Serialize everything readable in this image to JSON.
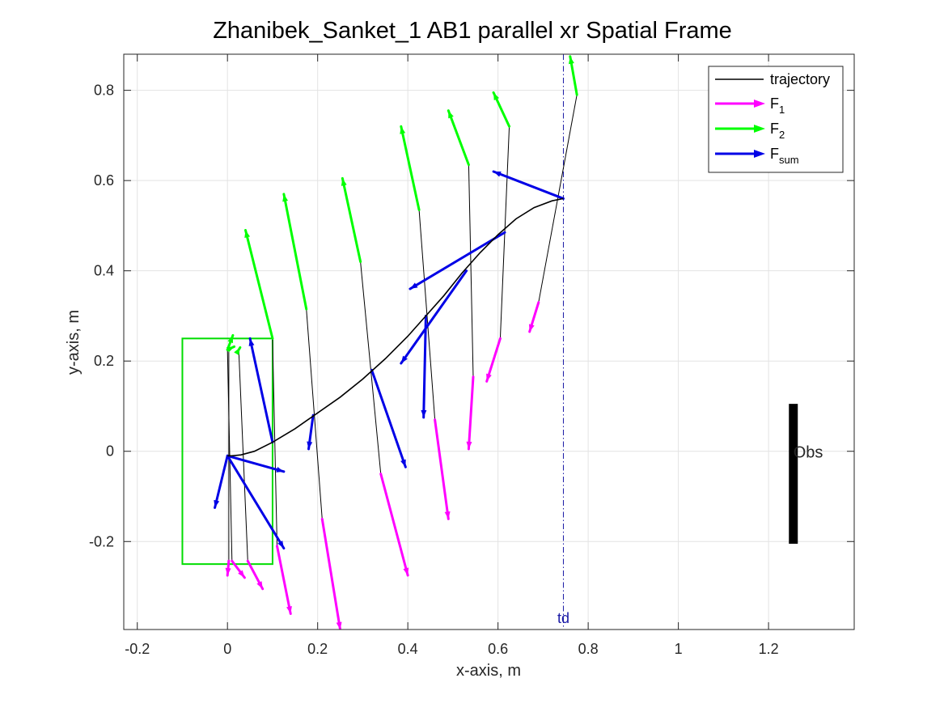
{
  "chart_data": {
    "type": "line",
    "title": "Zhanibek_Sanket_1    AB1    parallel    xr  Spatial Frame",
    "xlabel": "x-axis, m",
    "ylabel": "y-axis, m",
    "xlim": [
      -0.23,
      1.39
    ],
    "ylim": [
      -0.395,
      0.88
    ],
    "xticks": [
      -0.2,
      0,
      0.2,
      0.4,
      0.6,
      0.8,
      1,
      1.2
    ],
    "xtick_labels": [
      "-0.2",
      "0",
      "0.2",
      "0.4",
      "0.6",
      "0.8",
      "1",
      "1.2"
    ],
    "yticks": [
      -0.2,
      0,
      0.2,
      0.4,
      0.6,
      0.8
    ],
    "ytick_labels": [
      "-0.2",
      "0",
      "0.2",
      "0.4",
      "0.6",
      "0.8"
    ],
    "grid": true,
    "colors": {
      "trajectory": "#000000",
      "F1": "#ff00ff",
      "F2": "#00ff00",
      "Fsum": "#0000e6",
      "td": "#1a1aa6",
      "start_box": "#00dd00",
      "obstacle": "#000000"
    },
    "legend": {
      "position": "top-right",
      "entries": [
        {
          "label": "trajectory",
          "sub": ""
        },
        {
          "label": "F",
          "sub": "1"
        },
        {
          "label": "F",
          "sub": "2"
        },
        {
          "label": "F",
          "sub": "sum"
        }
      ]
    },
    "trajectory": {
      "x": [
        0.0,
        0.01,
        0.03,
        0.06,
        0.1,
        0.15,
        0.2,
        0.25,
        0.3,
        0.35,
        0.4,
        0.44,
        0.48,
        0.52,
        0.56,
        0.6,
        0.64,
        0.68,
        0.72,
        0.745
      ],
      "y": [
        -0.01,
        -0.01,
        -0.008,
        0.0,
        0.02,
        0.05,
        0.085,
        0.12,
        0.16,
        0.205,
        0.255,
        0.3,
        0.345,
        0.395,
        0.44,
        0.48,
        0.515,
        0.54,
        0.555,
        0.56
      ]
    },
    "start_box": {
      "x": [
        -0.1,
        0.1
      ],
      "y": [
        -0.25,
        0.25
      ]
    },
    "obstacle": {
      "x": 1.255,
      "y": [
        -0.205,
        0.105
      ],
      "label": "Obs"
    },
    "td_line": {
      "x": 0.745,
      "label": "td"
    },
    "force_groups": [
      {
        "F1": [
          0.003,
          -0.243,
          0.0,
          -0.275
        ],
        "F2": [
          0.0,
          0.225,
          0.015,
          0.232
        ],
        "Fsum": [
          0.0,
          -0.01,
          -0.028,
          -0.125
        ],
        "link": [
          0.003,
          -0.243,
          0.003,
          0.225
        ]
      },
      {
        "F1": [
          0.01,
          -0.243,
          0.038,
          -0.28
        ],
        "F2": [
          0.0,
          0.225,
          0.012,
          0.257
        ],
        "Fsum": [
          0.0,
          -0.01,
          0.125,
          -0.045
        ],
        "link": [
          0.01,
          -0.243,
          0.0,
          0.225
        ]
      },
      {
        "F1": [
          0.045,
          -0.243,
          0.078,
          -0.305
        ],
        "F2": [
          0.025,
          0.225,
          0.028,
          0.23
        ],
        "Fsum": [
          0.0,
          -0.01,
          0.125,
          -0.215
        ],
        "link": [
          0.045,
          -0.243,
          0.025,
          0.225
        ]
      },
      {
        "F1": [
          0.11,
          -0.21,
          0.14,
          -0.36
        ],
        "F2": [
          0.1,
          0.25,
          0.04,
          0.49
        ],
        "Fsum": [
          0.1,
          0.02,
          0.05,
          0.25
        ],
        "link": [
          0.11,
          -0.21,
          0.1,
          0.25
        ]
      },
      {
        "F1": [
          0.21,
          -0.15,
          0.25,
          -0.395
        ],
        "F2": [
          0.175,
          0.315,
          0.125,
          0.57
        ],
        "Fsum": [
          0.19,
          0.08,
          0.18,
          0.005
        ],
        "link": [
          0.21,
          -0.15,
          0.175,
          0.315
        ]
      },
      {
        "F1": [
          0.34,
          -0.05,
          0.4,
          -0.275
        ],
        "F2": [
          0.295,
          0.42,
          0.255,
          0.605
        ],
        "Fsum": [
          0.32,
          0.18,
          0.395,
          -0.035
        ],
        "link": [
          0.34,
          -0.05,
          0.295,
          0.42
        ]
      },
      {
        "F1": [
          0.46,
          0.07,
          0.49,
          -0.15
        ],
        "F2": [
          0.425,
          0.535,
          0.385,
          0.72
        ],
        "Fsum": [
          0.44,
          0.3,
          0.435,
          0.075
        ],
        "link": [
          0.46,
          0.07,
          0.425,
          0.535
        ]
      },
      {
        "F1": [
          0.545,
          0.165,
          0.535,
          0.005
        ],
        "F2": [
          0.535,
          0.635,
          0.49,
          0.755
        ],
        "Fsum": [
          0.53,
          0.4,
          0.385,
          0.195
        ],
        "link": [
          0.545,
          0.165,
          0.535,
          0.635
        ]
      },
      {
        "F1": [
          0.605,
          0.25,
          0.575,
          0.155
        ],
        "F2": [
          0.625,
          0.72,
          0.59,
          0.795
        ],
        "Fsum": [
          0.615,
          0.485,
          0.405,
          0.36
        ],
        "link": [
          0.605,
          0.25,
          0.625,
          0.72
        ]
      },
      {
        "F1": [
          0.69,
          0.33,
          0.67,
          0.265
        ],
        "F2": [
          0.775,
          0.79,
          0.76,
          0.875
        ],
        "Fsum": [
          0.745,
          0.56,
          0.59,
          0.62
        ],
        "link": [
          0.69,
          0.33,
          0.775,
          0.79
        ]
      }
    ]
  }
}
